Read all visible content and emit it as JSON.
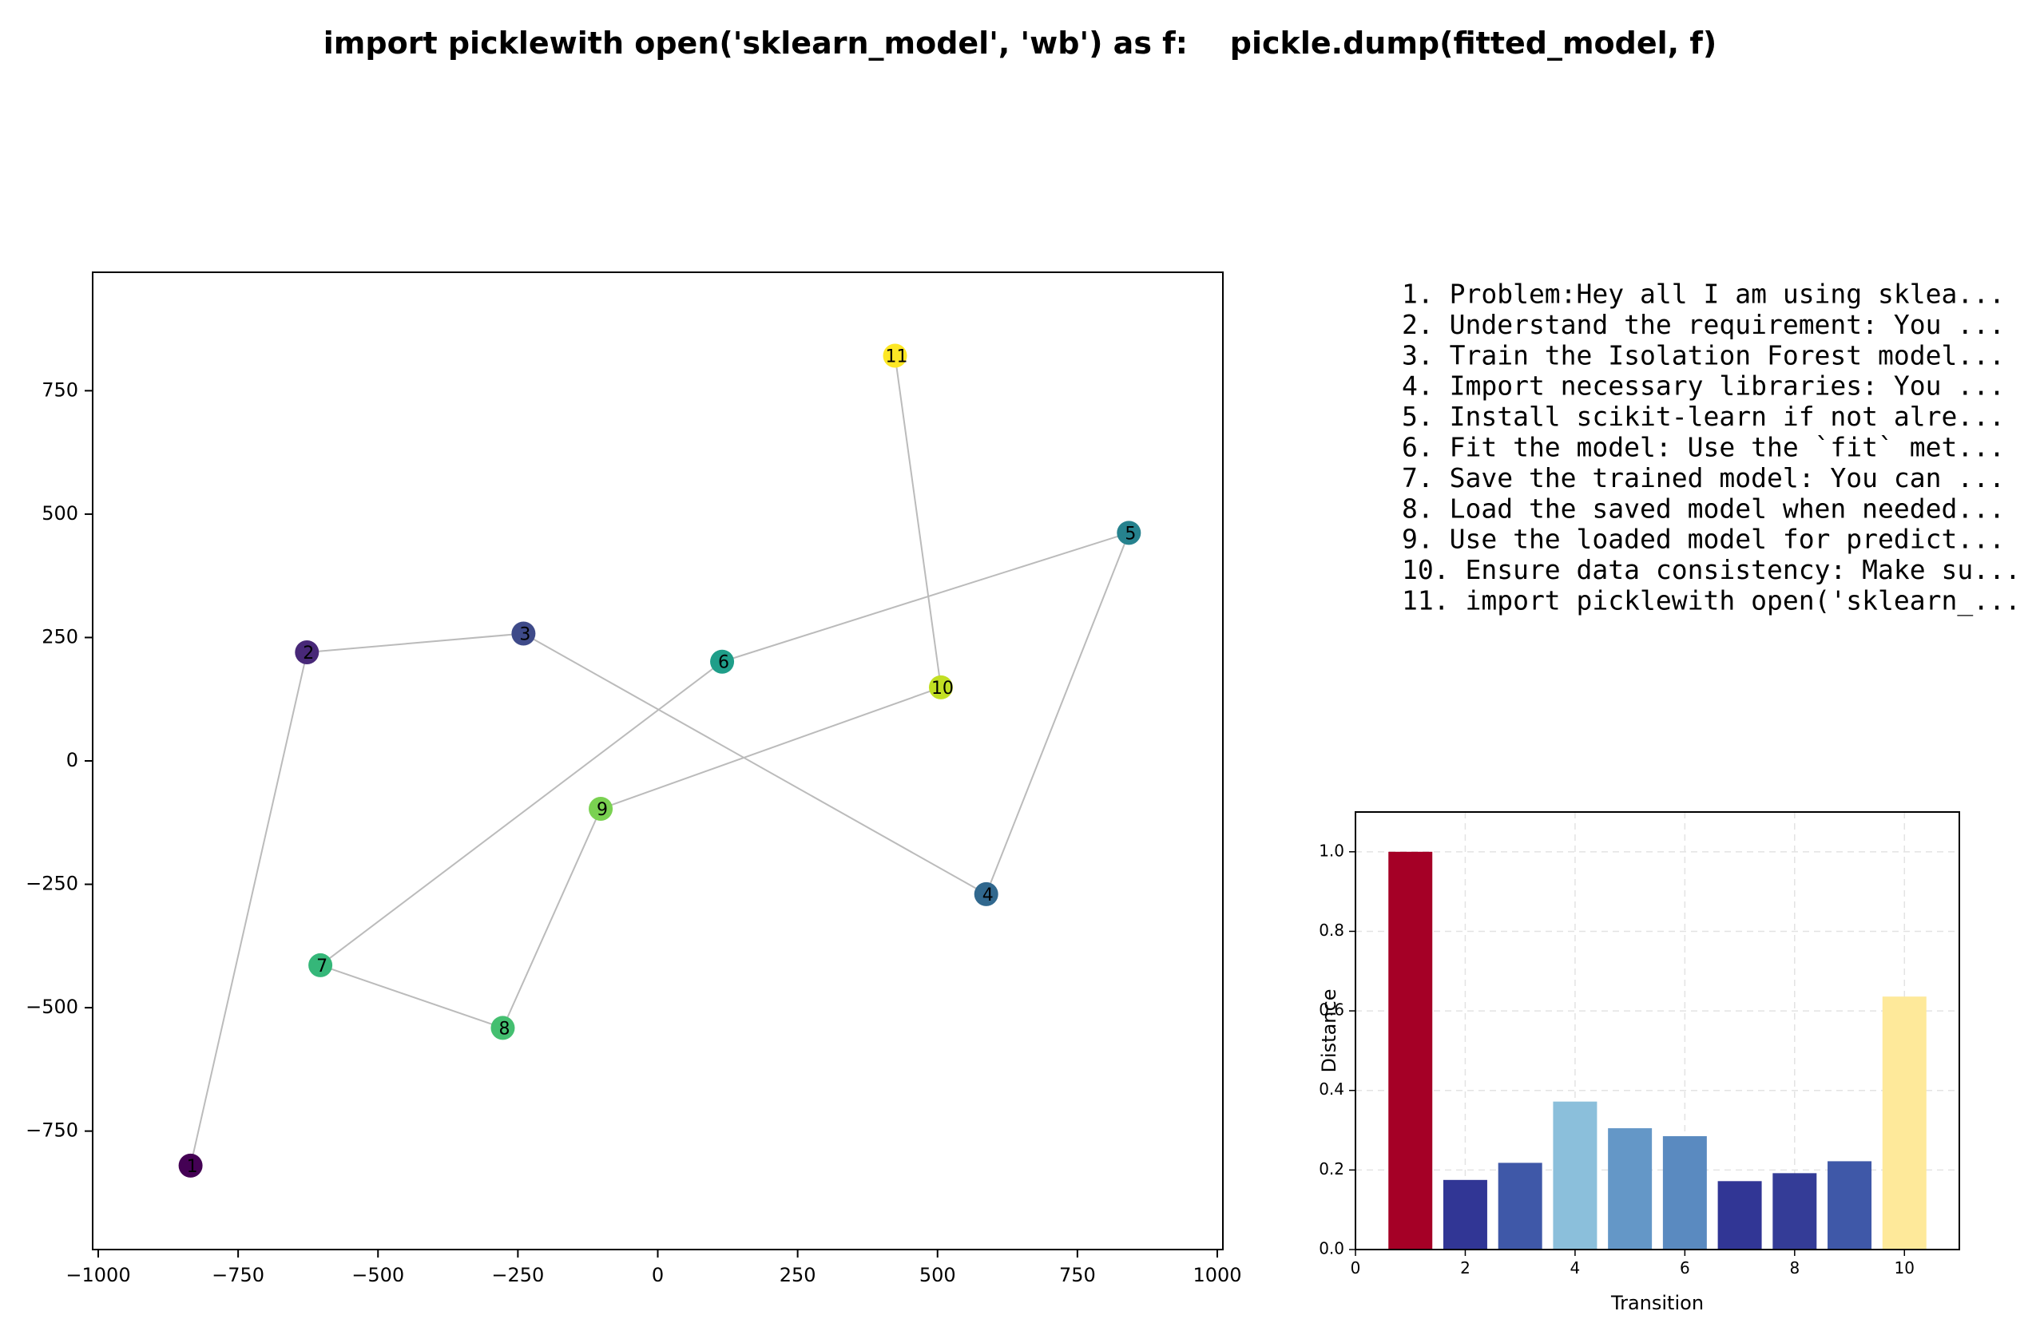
{
  "figure": {
    "title": "import picklewith open('sklearn_model', 'wb') as f:    pickle.dump(fitted_model, f)"
  },
  "steps": [
    " 1. Problem:Hey all I am using sklea...",
    " 2. Understand the requirement: You ...",
    " 3. Train the Isolation Forest model...",
    " 4. Import necessary libraries: You ...",
    " 5. Install scikit-learn if not alre...",
    " 6. Fit the model: Use the `fit` met...",
    " 7. Save the trained model: You can ...",
    " 8. Load the saved model when needed...",
    " 9. Use the loaded model for predict...",
    "10. Ensure data consistency: Make su...",
    "11. import picklewith open('sklearn_..."
  ],
  "chart_data": [
    {
      "type": "scatter",
      "title": "",
      "xlabel": "",
      "ylabel": "",
      "xlim": [
        -1010,
        1010
      ],
      "ylim": [
        -990,
        990
      ],
      "xticks": [
        -1000,
        -750,
        -500,
        -250,
        0,
        250,
        500,
        750,
        1000
      ],
      "yticks": [
        -750,
        -500,
        -250,
        0,
        250,
        500,
        750
      ],
      "xtick_labels": [
        "−1000",
        "−750",
        "−500",
        "−250",
        "0",
        "250",
        "500",
        "750",
        "1000"
      ],
      "ytick_labels": [
        "−750",
        "−500",
        "−250",
        "0",
        "250",
        "500",
        "750"
      ],
      "grid": false,
      "connected": true,
      "colormap": "viridis",
      "points": [
        {
          "label": "1",
          "x": -835,
          "y": -820,
          "color": "#440154"
        },
        {
          "label": "2",
          "x": -627,
          "y": 220,
          "color": "#482878"
        },
        {
          "label": "3",
          "x": -240,
          "y": 258,
          "color": "#3e4a89"
        },
        {
          "label": "4",
          "x": 587,
          "y": -270,
          "color": "#31688e"
        },
        {
          "label": "5",
          "x": 842,
          "y": 462,
          "color": "#26828e"
        },
        {
          "label": "6",
          "x": 115,
          "y": 201,
          "color": "#1f9e89"
        },
        {
          "label": "7",
          "x": -603,
          "y": -414,
          "color": "#35b779"
        },
        {
          "label": "8",
          "x": -277,
          "y": -541,
          "color": "#44bf70"
        },
        {
          "label": "9",
          "x": -102,
          "y": -97,
          "color": "#7ad151"
        },
        {
          "label": "10",
          "x": 506,
          "y": 149,
          "color": "#c2df23"
        },
        {
          "label": "11",
          "x": 424,
          "y": 821,
          "color": "#fde725"
        }
      ]
    },
    {
      "type": "bar",
      "title": "",
      "xlabel": "Transition",
      "ylabel": "Distance",
      "xlim": [
        0,
        11
      ],
      "ylim": [
        0,
        1.1
      ],
      "xticks": [
        0,
        2,
        4,
        6,
        8,
        10
      ],
      "yticks": [
        0.0,
        0.2,
        0.4,
        0.6,
        0.8,
        1.0
      ],
      "ytick_labels": [
        "0.0",
        "0.2",
        "0.4",
        "0.6",
        "0.8",
        "1.0"
      ],
      "grid": true,
      "categories": [
        1,
        2,
        3,
        4,
        5,
        6,
        7,
        8,
        9,
        10
      ],
      "values": [
        1.0,
        0.175,
        0.218,
        0.372,
        0.305,
        0.285,
        0.172,
        0.192,
        0.222,
        0.636
      ],
      "colors": [
        "#a50026",
        "#313695",
        "#3f58a8",
        "#8bbfdb",
        "#6497c7",
        "#5a8ac0",
        "#313695",
        "#343c97",
        "#3f58a8",
        "#fee99a"
      ]
    }
  ]
}
